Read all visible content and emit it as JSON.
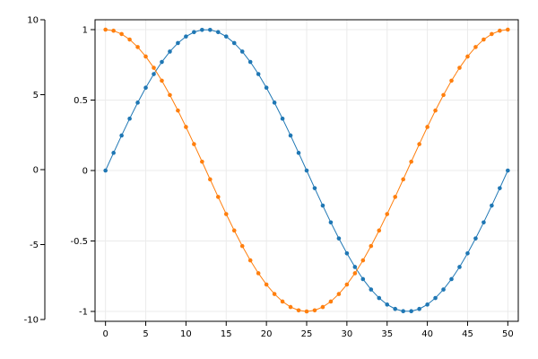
{
  "chart_data": {
    "type": "line",
    "title": "",
    "xlabel": "",
    "ylabel": "",
    "grid": true,
    "legend": "none",
    "xlim": [
      -1.3,
      51.3
    ],
    "ylim": [
      -1.07,
      1.07
    ],
    "xticks": [
      0,
      5,
      10,
      15,
      20,
      25,
      30,
      35,
      40,
      45,
      50
    ],
    "yticks": [
      -1,
      -0.5,
      0,
      0.5,
      1
    ],
    "xtick_labels": [
      "0",
      "5",
      "10",
      "15",
      "20",
      "25",
      "30",
      "35",
      "40",
      "45",
      "50"
    ],
    "ytick_labels": [
      "-1",
      "-0.5",
      "0",
      "0.5",
      "1"
    ],
    "secondary_yaxis": {
      "side": "left",
      "ylim": [
        -10,
        10
      ],
      "yticks": [
        -10,
        -5,
        0,
        5,
        10
      ],
      "ytick_labels": [
        "-10",
        "-5",
        "0",
        "5",
        "10"
      ]
    },
    "x": [
      0,
      1,
      2,
      3,
      4,
      5,
      6,
      7,
      8,
      9,
      10,
      11,
      12,
      13,
      14,
      15,
      16,
      17,
      18,
      19,
      20,
      21,
      22,
      23,
      24,
      25,
      26,
      27,
      28,
      29,
      30,
      31,
      32,
      33,
      34,
      35,
      36,
      37,
      38,
      39,
      40,
      41,
      42,
      43,
      44,
      45,
      46,
      47,
      48,
      49,
      50
    ],
    "series": [
      {
        "color": "#1f77b4",
        "values": [
          0,
          0.1253,
          0.2487,
          0.3681,
          0.4818,
          0.5878,
          0.6845,
          0.7705,
          0.8443,
          0.9048,
          0.9511,
          0.9823,
          0.998,
          0.998,
          0.9823,
          0.9511,
          0.9048,
          0.8443,
          0.7705,
          0.6845,
          0.5878,
          0.4818,
          0.3681,
          0.2487,
          0.1253,
          0,
          -0.1253,
          -0.2487,
          -0.3681,
          -0.4818,
          -0.5878,
          -0.6845,
          -0.7705,
          -0.8443,
          -0.9048,
          -0.9511,
          -0.9823,
          -0.998,
          -0.998,
          -0.9823,
          -0.9511,
          -0.9048,
          -0.8443,
          -0.7705,
          -0.6845,
          -0.5878,
          -0.4818,
          -0.3681,
          -0.2487,
          -0.1253,
          0
        ]
      },
      {
        "color": "#ff7f0e",
        "values": [
          1,
          0.9921,
          0.9686,
          0.9298,
          0.8763,
          0.809,
          0.729,
          0.6374,
          0.5358,
          0.4258,
          0.309,
          0.1874,
          0.0628,
          -0.0628,
          -0.1874,
          -0.309,
          -0.4258,
          -0.5358,
          -0.6374,
          -0.729,
          -0.809,
          -0.8763,
          -0.9298,
          -0.9686,
          -0.9921,
          -1,
          -0.9921,
          -0.9686,
          -0.9298,
          -0.8763,
          -0.809,
          -0.729,
          -0.6374,
          -0.5358,
          -0.4258,
          -0.309,
          -0.1874,
          -0.0628,
          0.0628,
          0.1874,
          0.309,
          0.4258,
          0.5358,
          0.6374,
          0.729,
          0.809,
          0.8763,
          0.9298,
          0.9686,
          0.9921,
          1
        ]
      }
    ]
  }
}
